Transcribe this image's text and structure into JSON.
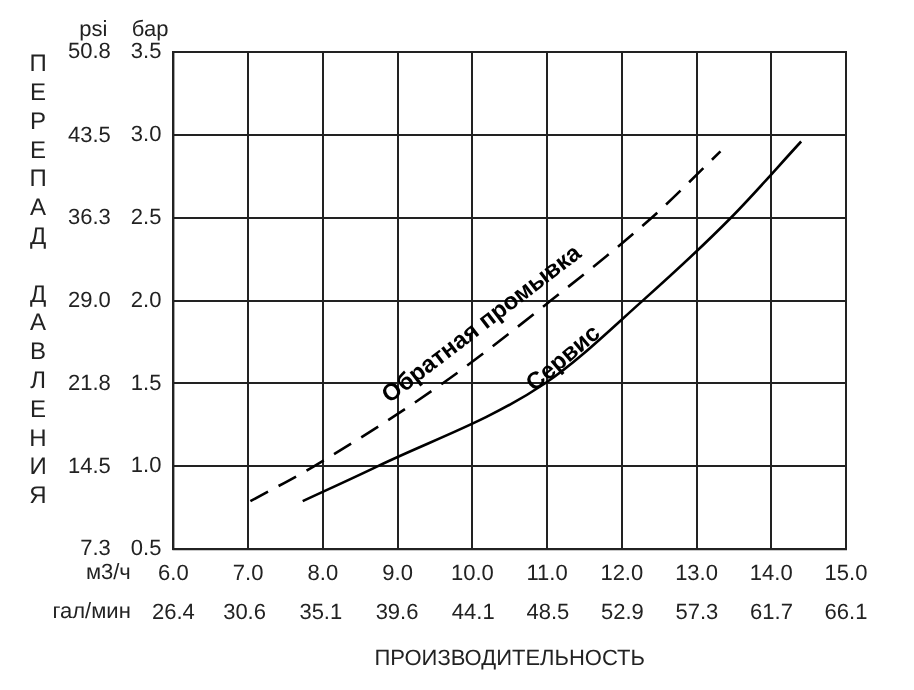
{
  "chart_data": {
    "type": "line",
    "xlabel": "ПРОИЗВОДИТЕЛЬНОСТЬ",
    "ylabel": "ПЕРЕПАД ДАВЛЕНИЯ",
    "xlim": [
      6.0,
      15.0
    ],
    "xticks": [
      {
        "value": 6,
        "label": "6.0"
      },
      {
        "value": 7,
        "label": "7.0"
      },
      {
        "value": 8,
        "label": "8.0"
      },
      {
        "value": 9,
        "label": "9.0"
      },
      {
        "value": 10,
        "label": "10.0"
      },
      {
        "value": 11,
        "label": "11.0"
      },
      {
        "value": 12,
        "label": "12.0"
      },
      {
        "value": 13,
        "label": "13.0"
      },
      {
        "value": 14,
        "label": "14.0"
      },
      {
        "value": 15,
        "label": "15.0"
      }
    ],
    "x2lim": [
      26.4,
      66.1
    ],
    "x2ticks": [
      26.4,
      30.6,
      35.1,
      39.6,
      44.1,
      48.5,
      52.9,
      57.3,
      61.7,
      66.1
    ],
    "ylim": [
      0.5,
      3.5
    ],
    "yticks": [
      0.5,
      {
        "value": 1,
        "label": "1.0"
      },
      1.5,
      {
        "value": 2,
        "label": "2.0"
      },
      2.5,
      {
        "value": 3,
        "label": "3.0"
      },
      3.5
    ],
    "y2lim": [
      7.3,
      50.8
    ],
    "y2ticks": [
      7.3,
      14.5,
      21.8,
      {
        "value": 29,
        "label": "29.0"
      },
      36.3,
      43.5,
      50.8
    ],
    "grid": true,
    "legend": false,
    "marker": "none",
    "series": [
      {
        "name": "Обратная промывка",
        "color": "#000000",
        "line_style": "dashed",
        "x": [
          7.03,
          7.88,
          9.6,
          11.05,
          12.4,
          13.32
        ],
        "values": [
          0.79,
          1.0,
          1.5,
          2.0,
          2.5,
          2.9
        ]
      },
      {
        "name": "Сервис",
        "color": "#000000",
        "line_style": "solid",
        "x": [
          7.73,
          8.73,
          10.97,
          12.28,
          13.46,
          14.4
        ],
        "values": [
          0.79,
          1.0,
          1.5,
          2.0,
          2.5,
          2.96
        ]
      }
    ],
    "annotations": [
      "psi",
      "бар",
      "м3/ч",
      "гал/мин"
    ]
  }
}
